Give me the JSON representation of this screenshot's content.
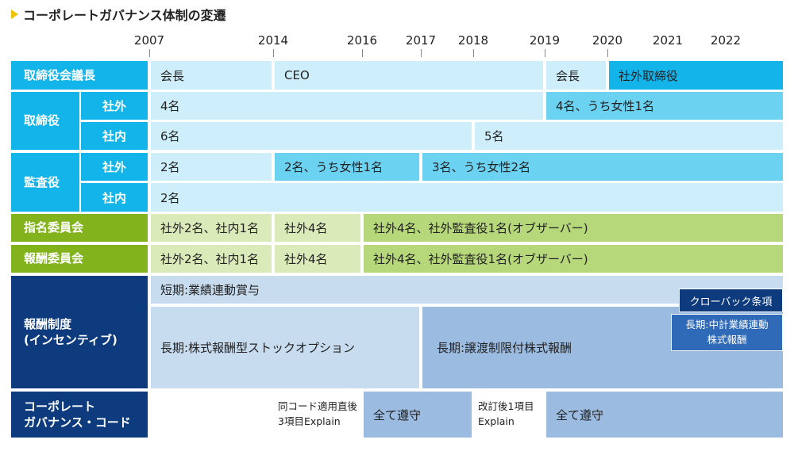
{
  "title": "コーポレートガバナンス体制の変遷",
  "years": [
    "2007",
    "2014",
    "2016",
    "2017",
    "2018",
    "2019",
    "2020",
    "2021",
    "2022"
  ],
  "colors": {
    "head_blue": "#12b4ea",
    "head_green": "#82b31c",
    "head_navy": "#0d3b7d",
    "light_blue": "#cdeefa",
    "mid_blue": "#6cd2f2",
    "light_green": "#dbeab9",
    "mid_green": "#b6d77a",
    "pale_steel": "#c8dcef",
    "steel": "#9bbbe0",
    "dark_steel": "#2e6ab8",
    "title_marker": "#f2c200"
  },
  "rows": {
    "chair": {
      "label": "取締役会議長",
      "cells": [
        "会長",
        "CEO",
        "会長",
        "社外取締役"
      ]
    },
    "board": {
      "label": "取締役",
      "outside": {
        "label": "社外",
        "cells": [
          "4名",
          "4名、うち女性1名"
        ]
      },
      "inside": {
        "label": "社内",
        "cells": [
          "6名",
          "5名"
        ]
      }
    },
    "auditors": {
      "label": "監査役",
      "outside": {
        "label": "社外",
        "cells": [
          "2名",
          "2名、うち女性1名",
          "3名、うち女性2名"
        ]
      },
      "inside": {
        "label": "社内",
        "cells": [
          "2名"
        ]
      }
    },
    "nomination": {
      "label": "指名委員会",
      "cells": [
        "社外2名、社内1名",
        "社外4名",
        "社外4名、社外監査役1名(オブザーバー)"
      ]
    },
    "remuneration_committee": {
      "label": "報酬委員会",
      "cells": [
        "社外2名、社内1名",
        "社外4名",
        "社外4名、社外監査役1名(オブザーバー)"
      ]
    },
    "compensation": {
      "label_line1": "報酬制度",
      "label_line2": "(インセンティブ)",
      "short_term": "短期:業績連動賞与",
      "clawback": "クローバック条項",
      "long_term_option": "長期:株式報酬型ストックオプション",
      "long_term_restricted": "長期:譲渡制限付株式報酬",
      "long_term_midterm_line1": "長期:中計業績連動",
      "long_term_midterm_line2": "株式報酬"
    },
    "cg_code": {
      "label_line1": "コーポレート",
      "label_line2": "ガバナンス・コード",
      "cells": {
        "after_adoption_line1": "同コード適用直後",
        "after_adoption_line2": "3項目Explain",
        "full_compliance_1": "全て遵守",
        "after_revision_line1": "改訂後1項目",
        "after_revision_line2": "Explain",
        "full_compliance_2": "全て遵守"
      }
    }
  }
}
